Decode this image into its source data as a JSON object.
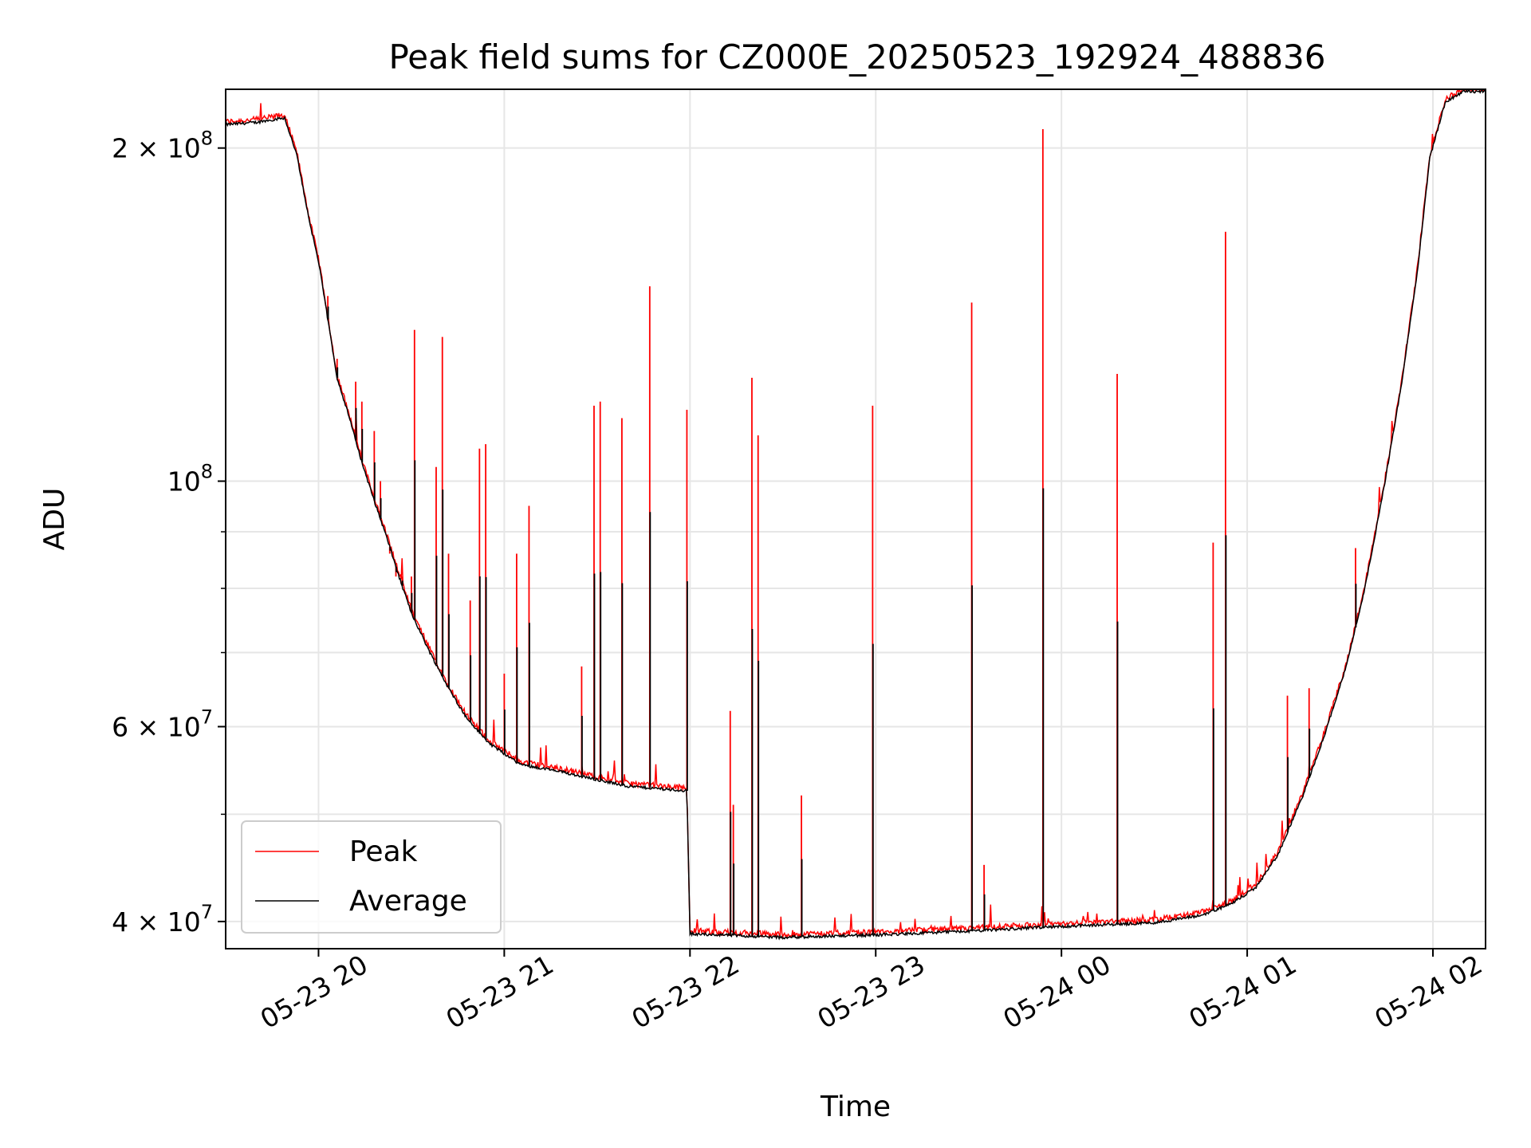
{
  "chart_data": {
    "type": "line",
    "title": "Peak field sums for CZ000E_20250523_192924_488836",
    "xlabel": "Time",
    "ylabel": "ADU",
    "yscale": "log",
    "grid": true,
    "legend_position": "lower-left",
    "xlim": [
      "2025-05-23 19:30",
      "2025-05-24 02:17"
    ],
    "ylim": [
      37800000,
      226000000
    ],
    "x_ticks": [
      {
        "value": "2025-05-23 20:00",
        "label": "05-23 20"
      },
      {
        "value": "2025-05-23 21:00",
        "label": "05-23 21"
      },
      {
        "value": "2025-05-23 22:00",
        "label": "05-23 22"
      },
      {
        "value": "2025-05-23 23:00",
        "label": "05-23 23"
      },
      {
        "value": "2025-05-24 00:00",
        "label": "05-24 00"
      },
      {
        "value": "2025-05-24 01:00",
        "label": "05-24 01"
      },
      {
        "value": "2025-05-24 02:00",
        "label": "05-24 02"
      }
    ],
    "y_major_ticks": [
      {
        "value": 40000000,
        "label_base": "4 × 10",
        "label_exp": "7"
      },
      {
        "value": 60000000,
        "label_base": "6 × 10",
        "label_exp": "7"
      },
      {
        "value": 100000000,
        "label_base": "10",
        "label_exp": "8"
      },
      {
        "value": 200000000,
        "label_base": "2 × 10",
        "label_exp": "8"
      }
    ],
    "y_minor_gridlines": [
      50000000,
      70000000,
      80000000,
      90000000
    ],
    "series": [
      {
        "name": "Peak",
        "color": "#ff0000"
      },
      {
        "name": "Average",
        "color": "#000000"
      }
    ],
    "average_points": [
      [
        "2025-05-23 19:30",
        210000000
      ],
      [
        "2025-05-23 19:40",
        211000000
      ],
      [
        "2025-05-23 19:49",
        213000000
      ],
      [
        "2025-05-23 19:53",
        197000000
      ],
      [
        "2025-05-23 19:57",
        172000000
      ],
      [
        "2025-05-23 20:00",
        158000000
      ],
      [
        "2025-05-23 20:03",
        140000000
      ],
      [
        "2025-05-23 20:06",
        124000000
      ],
      [
        "2025-05-23 20:10",
        114000000
      ],
      [
        "2025-05-23 20:14",
        104000000
      ],
      [
        "2025-05-23 20:18",
        96000000
      ],
      [
        "2025-05-23 20:22",
        89000000
      ],
      [
        "2025-05-23 20:26",
        82000000
      ],
      [
        "2025-05-23 20:30",
        76000000
      ],
      [
        "2025-05-23 20:36",
        70000000
      ],
      [
        "2025-05-23 20:42",
        65000000
      ],
      [
        "2025-05-23 20:48",
        61000000
      ],
      [
        "2025-05-23 20:55",
        58000000
      ],
      [
        "2025-05-23 21:05",
        55500000
      ],
      [
        "2025-05-23 21:20",
        54500000
      ],
      [
        "2025-05-23 21:40",
        53000000
      ],
      [
        "2025-05-23 21:59",
        52500000
      ],
      [
        "2025-05-23 22:00",
        39000000
      ],
      [
        "2025-05-23 22:30",
        38700000
      ],
      [
        "2025-05-23 23:00",
        38900000
      ],
      [
        "2025-05-23 23:30",
        39200000
      ],
      [
        "2025-05-24 00:00",
        39600000
      ],
      [
        "2025-05-24 00:30",
        39900000
      ],
      [
        "2025-05-24 00:45",
        40500000
      ],
      [
        "2025-05-24 00:55",
        41500000
      ],
      [
        "2025-05-24 01:03",
        43000000
      ],
      [
        "2025-05-24 01:10",
        46000000
      ],
      [
        "2025-05-24 01:18",
        52000000
      ],
      [
        "2025-05-24 01:25",
        59000000
      ],
      [
        "2025-05-24 01:32",
        68000000
      ],
      [
        "2025-05-24 01:38",
        80000000
      ],
      [
        "2025-05-24 01:44",
        98000000
      ],
      [
        "2025-05-24 01:50",
        123000000
      ],
      [
        "2025-05-24 01:55",
        155000000
      ],
      [
        "2025-05-24 01:59",
        196000000
      ],
      [
        "2025-05-24 02:04",
        220000000
      ],
      [
        "2025-05-24 02:10",
        225000000
      ],
      [
        "2025-05-24 02:17",
        225000000
      ]
    ],
    "peak_spikes": [
      [
        "2025-05-23 19:49",
        214000000
      ],
      [
        "2025-05-23 20:03",
        147000000
      ],
      [
        "2025-05-23 20:06",
        129000000
      ],
      [
        "2025-05-23 20:12",
        123000000
      ],
      [
        "2025-05-23 20:14",
        118000000
      ],
      [
        "2025-05-23 20:18",
        111000000
      ],
      [
        "2025-05-23 20:20",
        100000000
      ],
      [
        "2025-05-23 20:23",
        86000000
      ],
      [
        "2025-05-23 20:25",
        82000000
      ],
      [
        "2025-05-23 20:27",
        82000000
      ],
      [
        "2025-05-23 20:30",
        82000000
      ],
      [
        "2025-05-23 20:31",
        137000000
      ],
      [
        "2025-05-23 20:38",
        103000000
      ],
      [
        "2025-05-23 20:40",
        135000000
      ],
      [
        "2025-05-23 20:42",
        86000000
      ],
      [
        "2025-05-23 20:49",
        78000000
      ],
      [
        "2025-05-23 20:52",
        107000000
      ],
      [
        "2025-05-23 20:54",
        108000000
      ],
      [
        "2025-05-23 21:00",
        67000000
      ],
      [
        "2025-05-23 21:04",
        86000000
      ],
      [
        "2025-05-23 21:08",
        95000000
      ],
      [
        "2025-05-23 21:25",
        68000000
      ],
      [
        "2025-05-23 21:29",
        117000000
      ],
      [
        "2025-05-23 21:31",
        118000000
      ],
      [
        "2025-05-23 21:38",
        114000000
      ],
      [
        "2025-05-23 21:47",
        150000000
      ],
      [
        "2025-05-23 21:59",
        116000000
      ],
      [
        "2025-05-23 22:13",
        62000000
      ],
      [
        "2025-05-23 22:14",
        51000000
      ],
      [
        "2025-05-23 22:20",
        124000000
      ],
      [
        "2025-05-23 22:22",
        110000000
      ],
      [
        "2025-05-23 22:36",
        52000000
      ],
      [
        "2025-05-23 22:59",
        117000000
      ],
      [
        "2025-05-23 23:31",
        145000000
      ],
      [
        "2025-05-23 23:35",
        45000000
      ],
      [
        "2025-05-23 23:54",
        208000000
      ],
      [
        "2025-05-24 00:18",
        125000000
      ],
      [
        "2025-05-24 00:49",
        88000000
      ],
      [
        "2025-05-24 00:53",
        168000000
      ],
      [
        "2025-05-24 01:13",
        64000000
      ],
      [
        "2025-05-24 01:20",
        65000000
      ],
      [
        "2025-05-24 01:35",
        87000000
      ]
    ]
  }
}
